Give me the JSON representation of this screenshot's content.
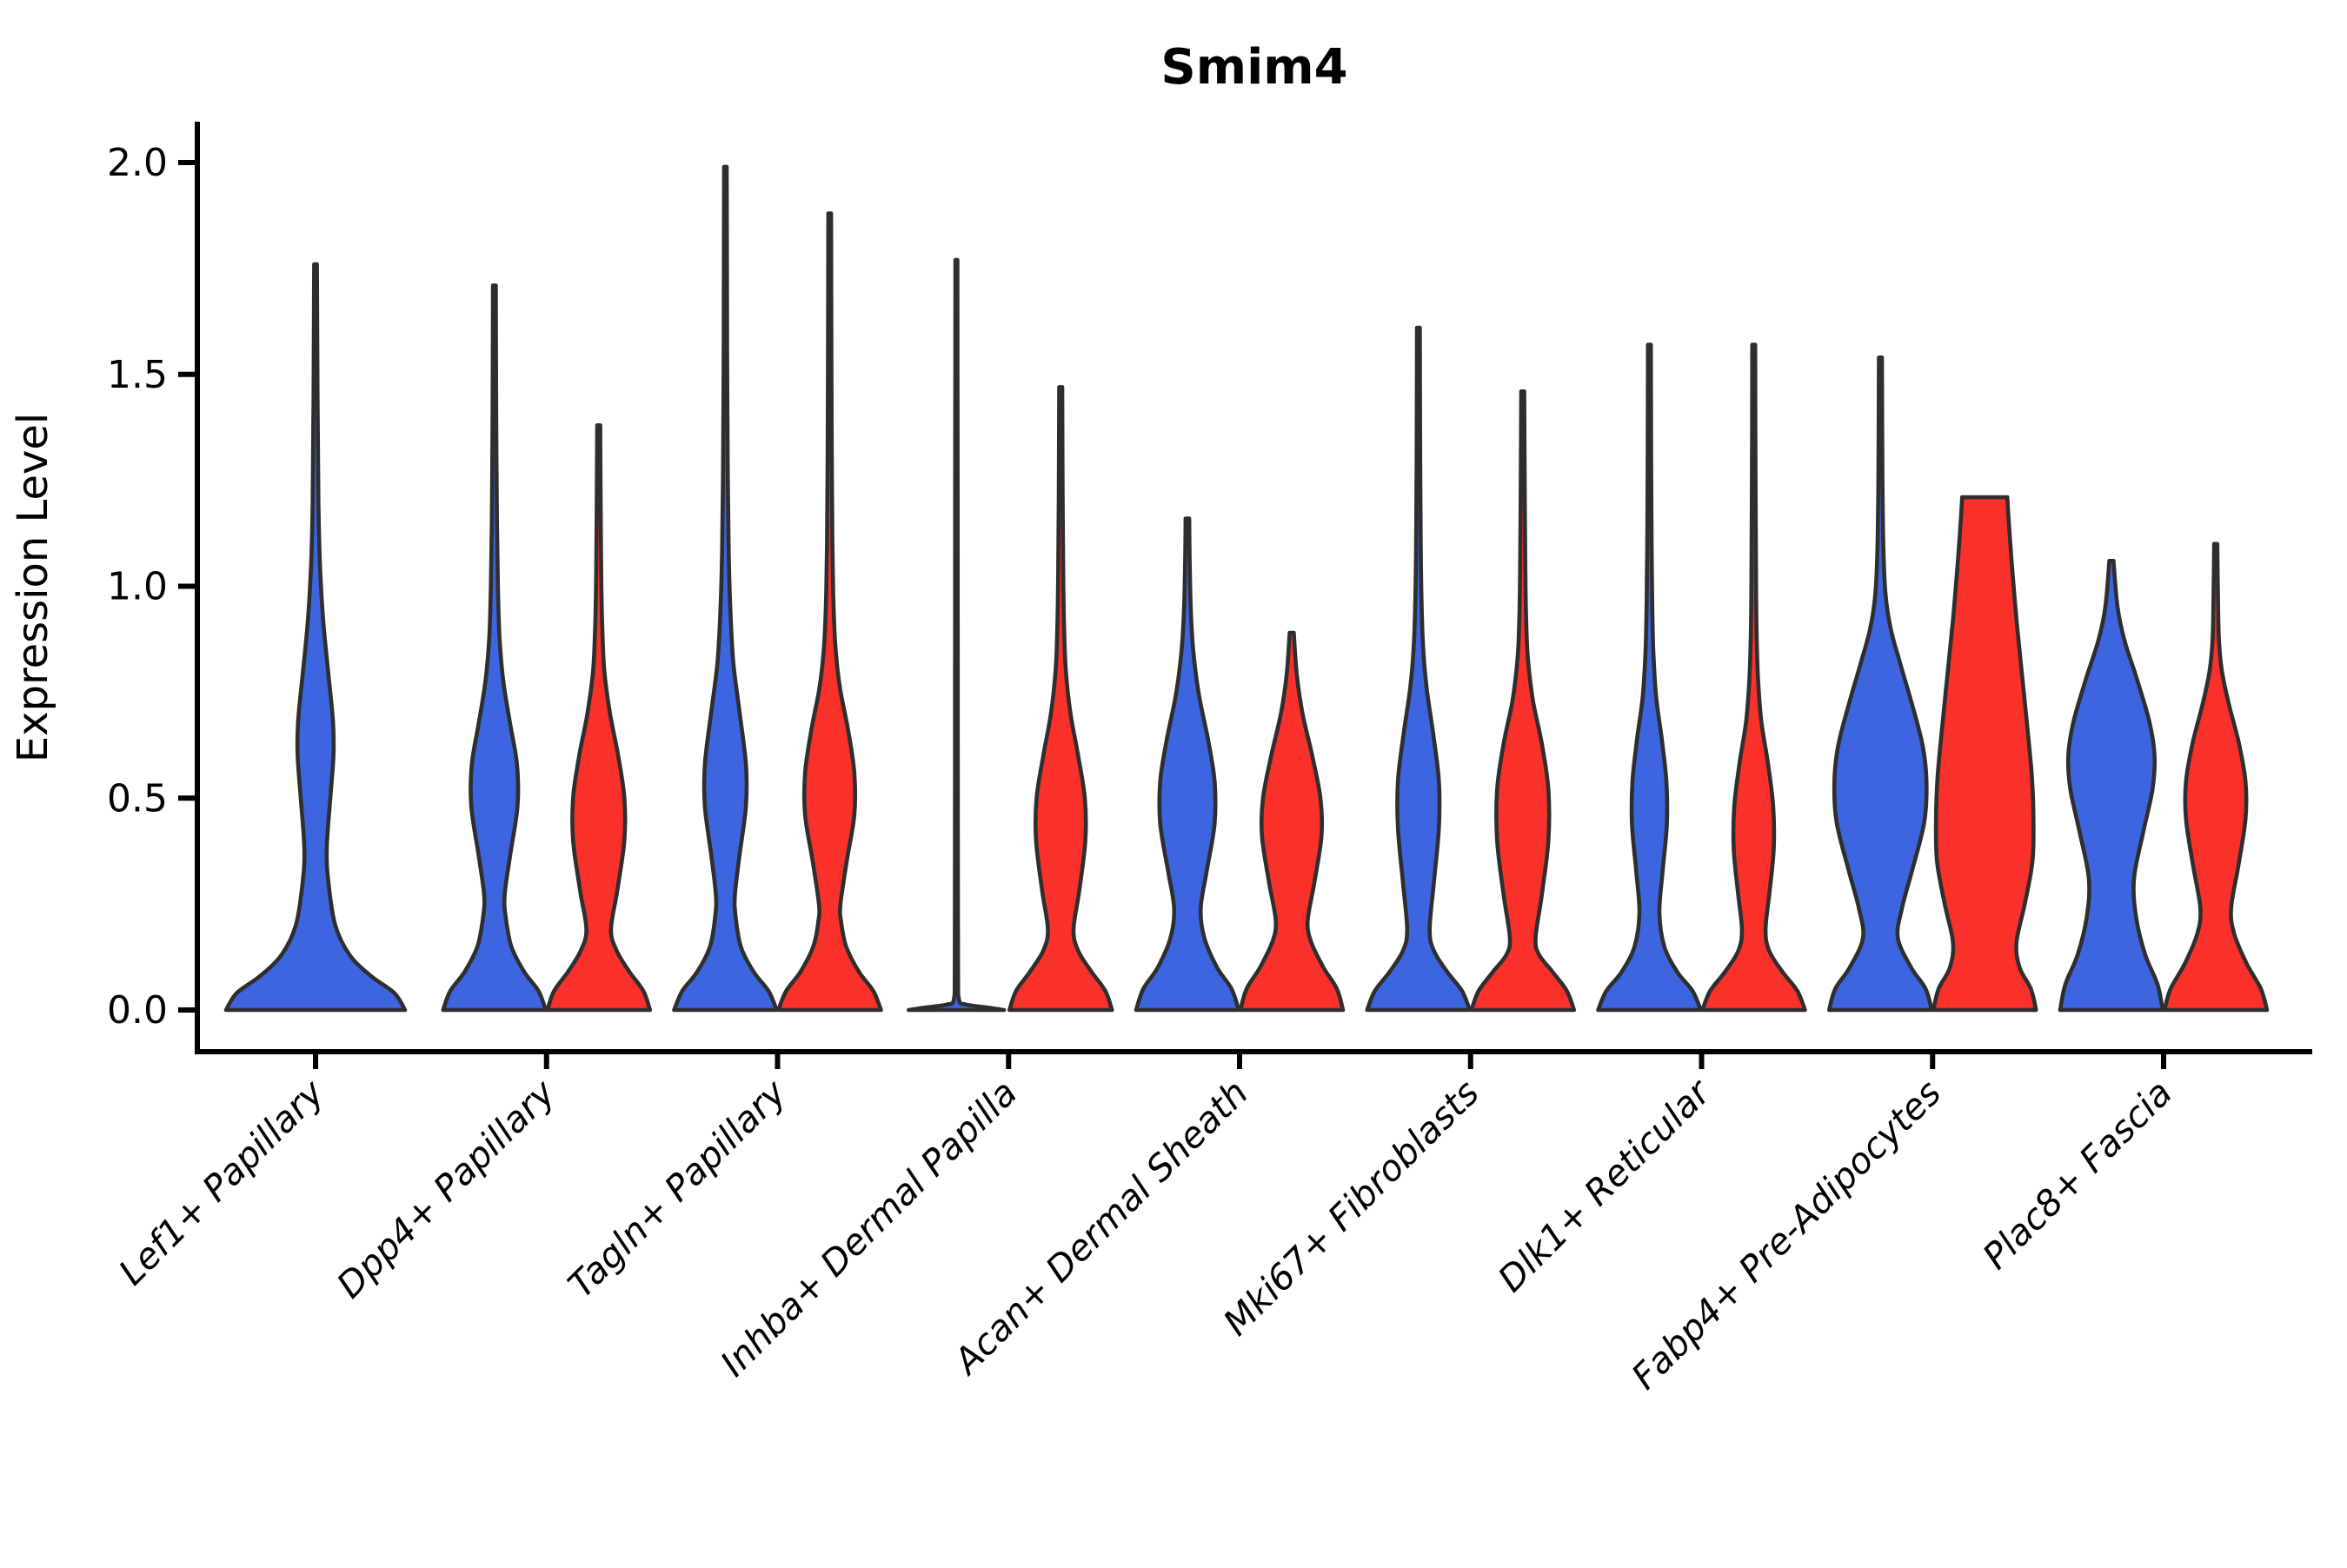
{
  "chart_data": {
    "type": "violin",
    "title": "Smim4",
    "ylabel": "Expression Level",
    "xlabel": "",
    "ylim": [
      0,
      2.05
    ],
    "grid": false,
    "legend": "none",
    "yticks": {
      "values": [
        0,
        0.5,
        1.0,
        1.5,
        2.0
      ],
      "labels": [
        "0.0",
        "0.5",
        "1.0",
        "1.5",
        "2.0"
      ]
    },
    "categories": [
      "Lef1+ Papillary",
      "Dpp4+ Papillary",
      "Tagln+ Papillary",
      "Inhba+ Dermal Papilla",
      "Acan+ Dermal Sheath",
      "Mki67+ Fibroblasts",
      "Dlk1+ Reticular",
      "Fabp4+ Pre-Adipocytes",
      "Plac8+ Fascia"
    ],
    "conditions": [
      {
        "id": "cond1",
        "color": "#3D65DF"
      },
      {
        "id": "cond2",
        "color": "#FA312A"
      }
    ],
    "outline_color": "#2E2E2E",
    "axis_color": "#000000",
    "violins": [
      {
        "category": "Lef1+ Papillary",
        "condition": "cond1",
        "layout": "single",
        "max": 1.76,
        "profile": [
          [
            0,
            1.0
          ],
          [
            0.04,
            0.88
          ],
          [
            0.08,
            0.62
          ],
          [
            0.13,
            0.38
          ],
          [
            0.2,
            0.22
          ],
          [
            0.3,
            0.145
          ],
          [
            0.38,
            0.125
          ],
          [
            0.5,
            0.165
          ],
          [
            0.6,
            0.2
          ],
          [
            0.68,
            0.195
          ],
          [
            0.8,
            0.14
          ],
          [
            0.92,
            0.085
          ],
          [
            1.05,
            0.05
          ],
          [
            1.2,
            0.032
          ],
          [
            1.45,
            0.022
          ],
          [
            1.76,
            0.016
          ]
        ]
      },
      {
        "category": "Dpp4+ Papillary",
        "condition": "cond1",
        "layout": "left",
        "max": 1.71,
        "profile": [
          [
            0,
            1.0
          ],
          [
            0.045,
            0.86
          ],
          [
            0.09,
            0.58
          ],
          [
            0.15,
            0.33
          ],
          [
            0.22,
            0.22
          ],
          [
            0.27,
            0.2
          ],
          [
            0.36,
            0.3
          ],
          [
            0.48,
            0.45
          ],
          [
            0.58,
            0.44
          ],
          [
            0.68,
            0.3
          ],
          [
            0.78,
            0.17
          ],
          [
            0.88,
            0.1
          ],
          [
            1.0,
            0.068
          ],
          [
            1.15,
            0.05
          ],
          [
            1.35,
            0.038
          ],
          [
            1.55,
            0.032
          ],
          [
            1.71,
            0.028
          ]
        ]
      },
      {
        "category": "Dpp4+ Papillary",
        "condition": "cond2",
        "layout": "right",
        "max": 1.38,
        "profile": [
          [
            0,
            1.0
          ],
          [
            0.045,
            0.87
          ],
          [
            0.09,
            0.6
          ],
          [
            0.14,
            0.35
          ],
          [
            0.19,
            0.24
          ],
          [
            0.28,
            0.36
          ],
          [
            0.4,
            0.5
          ],
          [
            0.5,
            0.5
          ],
          [
            0.6,
            0.38
          ],
          [
            0.7,
            0.22
          ],
          [
            0.8,
            0.11
          ],
          [
            0.9,
            0.07
          ],
          [
            1.02,
            0.05
          ],
          [
            1.2,
            0.038
          ],
          [
            1.38,
            0.03
          ]
        ]
      },
      {
        "category": "Tagln+ Papillary",
        "condition": "cond1",
        "layout": "left",
        "max": 1.99,
        "profile": [
          [
            0,
            1.0
          ],
          [
            0.045,
            0.84
          ],
          [
            0.09,
            0.55
          ],
          [
            0.15,
            0.3
          ],
          [
            0.22,
            0.2
          ],
          [
            0.27,
            0.185
          ],
          [
            0.36,
            0.27
          ],
          [
            0.48,
            0.4
          ],
          [
            0.58,
            0.4
          ],
          [
            0.7,
            0.28
          ],
          [
            0.82,
            0.155
          ],
          [
            0.95,
            0.095
          ],
          [
            1.08,
            0.065
          ],
          [
            1.25,
            0.048
          ],
          [
            1.5,
            0.036
          ],
          [
            1.75,
            0.03
          ],
          [
            1.99,
            0.026
          ]
        ]
      },
      {
        "category": "Tagln+ Papillary",
        "condition": "cond2",
        "layout": "right",
        "max": 1.88,
        "profile": [
          [
            0,
            1.0
          ],
          [
            0.045,
            0.85
          ],
          [
            0.09,
            0.57
          ],
          [
            0.15,
            0.32
          ],
          [
            0.21,
            0.22
          ],
          [
            0.25,
            0.21
          ],
          [
            0.35,
            0.33
          ],
          [
            0.46,
            0.48
          ],
          [
            0.56,
            0.48
          ],
          [
            0.66,
            0.36
          ],
          [
            0.76,
            0.2
          ],
          [
            0.86,
            0.11
          ],
          [
            0.97,
            0.072
          ],
          [
            1.1,
            0.052
          ],
          [
            1.3,
            0.04
          ],
          [
            1.6,
            0.032
          ],
          [
            1.88,
            0.027
          ]
        ]
      },
      {
        "category": "Inhba+ Dermal Papilla",
        "condition": "cond1",
        "layout": "left",
        "max": 1.77,
        "profile": [
          [
            0,
            0.93
          ],
          [
            0.006,
            0.6
          ],
          [
            0.013,
            0.18
          ],
          [
            0.025,
            0.05
          ],
          [
            0.1,
            0.032
          ],
          [
            0.4,
            0.028
          ],
          [
            0.8,
            0.026
          ],
          [
            1.2,
            0.024
          ],
          [
            1.5,
            0.022
          ],
          [
            1.77,
            0.02
          ]
        ]
      },
      {
        "category": "Inhba+ Dermal Papilla",
        "condition": "cond2",
        "layout": "right",
        "max": 1.47,
        "profile": [
          [
            0,
            1.0
          ],
          [
            0.045,
            0.87
          ],
          [
            0.09,
            0.6
          ],
          [
            0.14,
            0.34
          ],
          [
            0.19,
            0.25
          ],
          [
            0.28,
            0.36
          ],
          [
            0.4,
            0.48
          ],
          [
            0.5,
            0.47
          ],
          [
            0.6,
            0.34
          ],
          [
            0.7,
            0.19
          ],
          [
            0.8,
            0.1
          ],
          [
            0.9,
            0.067
          ],
          [
            1.02,
            0.05
          ],
          [
            1.2,
            0.038
          ],
          [
            1.47,
            0.03
          ]
        ]
      },
      {
        "category": "Acan+ Dermal Sheath",
        "condition": "cond1",
        "layout": "left",
        "max": 1.16,
        "profile": [
          [
            0,
            1.0
          ],
          [
            0.05,
            0.86
          ],
          [
            0.1,
            0.58
          ],
          [
            0.17,
            0.33
          ],
          [
            0.24,
            0.26
          ],
          [
            0.33,
            0.38
          ],
          [
            0.44,
            0.53
          ],
          [
            0.54,
            0.53
          ],
          [
            0.64,
            0.4
          ],
          [
            0.74,
            0.23
          ],
          [
            0.84,
            0.12
          ],
          [
            0.94,
            0.068
          ],
          [
            1.05,
            0.045
          ],
          [
            1.16,
            0.035
          ]
        ]
      },
      {
        "category": "Acan+ Dermal Sheath",
        "condition": "cond2",
        "layout": "right",
        "max": 0.89,
        "profile": [
          [
            0,
            1.0
          ],
          [
            0.05,
            0.88
          ],
          [
            0.1,
            0.62
          ],
          [
            0.16,
            0.38
          ],
          [
            0.21,
            0.31
          ],
          [
            0.3,
            0.44
          ],
          [
            0.41,
            0.58
          ],
          [
            0.5,
            0.56
          ],
          [
            0.6,
            0.4
          ],
          [
            0.7,
            0.21
          ],
          [
            0.79,
            0.1
          ],
          [
            0.89,
            0.04
          ]
        ]
      },
      {
        "category": "Mki67+ Fibroblasts",
        "condition": "cond1",
        "layout": "left",
        "max": 1.61,
        "profile": [
          [
            0,
            1.0
          ],
          [
            0.045,
            0.85
          ],
          [
            0.09,
            0.56
          ],
          [
            0.14,
            0.3
          ],
          [
            0.19,
            0.22
          ],
          [
            0.3,
            0.3
          ],
          [
            0.43,
            0.4
          ],
          [
            0.54,
            0.4
          ],
          [
            0.65,
            0.29
          ],
          [
            0.76,
            0.16
          ],
          [
            0.86,
            0.09
          ],
          [
            0.97,
            0.06
          ],
          [
            1.1,
            0.045
          ],
          [
            1.3,
            0.035
          ],
          [
            1.61,
            0.028
          ]
        ]
      },
      {
        "category": "Mki67+ Fibroblasts",
        "condition": "cond2",
        "layout": "right",
        "max": 1.46,
        "profile": [
          [
            0,
            1.0
          ],
          [
            0.045,
            0.86
          ],
          [
            0.09,
            0.58
          ],
          [
            0.13,
            0.32
          ],
          [
            0.17,
            0.25
          ],
          [
            0.27,
            0.37
          ],
          [
            0.4,
            0.5
          ],
          [
            0.52,
            0.5
          ],
          [
            0.63,
            0.37
          ],
          [
            0.73,
            0.2
          ],
          [
            0.83,
            0.1
          ],
          [
            0.93,
            0.065
          ],
          [
            1.05,
            0.05
          ],
          [
            1.25,
            0.038
          ],
          [
            1.46,
            0.03
          ]
        ]
      },
      {
        "category": "Dlk1+ Reticular",
        "condition": "cond1",
        "layout": "left",
        "max": 1.57,
        "profile": [
          [
            0,
            1.0
          ],
          [
            0.045,
            0.84
          ],
          [
            0.09,
            0.54
          ],
          [
            0.15,
            0.29
          ],
          [
            0.23,
            0.195
          ],
          [
            0.33,
            0.26
          ],
          [
            0.44,
            0.34
          ],
          [
            0.54,
            0.33
          ],
          [
            0.64,
            0.24
          ],
          [
            0.74,
            0.13
          ],
          [
            0.85,
            0.075
          ],
          [
            0.96,
            0.055
          ],
          [
            1.1,
            0.042
          ],
          [
            1.3,
            0.034
          ],
          [
            1.57,
            0.028
          ]
        ]
      },
      {
        "category": "Dlk1+ Reticular",
        "condition": "cond2",
        "layout": "right",
        "max": 1.57,
        "profile": [
          [
            0,
            1.0
          ],
          [
            0.045,
            0.85
          ],
          [
            0.09,
            0.56
          ],
          [
            0.14,
            0.3
          ],
          [
            0.19,
            0.23
          ],
          [
            0.28,
            0.31
          ],
          [
            0.38,
            0.39
          ],
          [
            0.48,
            0.38
          ],
          [
            0.58,
            0.28
          ],
          [
            0.68,
            0.15
          ],
          [
            0.78,
            0.085
          ],
          [
            0.88,
            0.058
          ],
          [
            1.0,
            0.045
          ],
          [
            1.25,
            0.035
          ],
          [
            1.57,
            0.028
          ]
        ]
      },
      {
        "category": "Fabp4+ Pre-Adipocytes",
        "condition": "cond1",
        "layout": "left",
        "max": 1.54,
        "profile": [
          [
            0,
            1.0
          ],
          [
            0.05,
            0.88
          ],
          [
            0.1,
            0.6
          ],
          [
            0.17,
            0.34
          ],
          [
            0.24,
            0.42
          ],
          [
            0.33,
            0.62
          ],
          [
            0.44,
            0.85
          ],
          [
            0.53,
            0.9
          ],
          [
            0.62,
            0.83
          ],
          [
            0.72,
            0.62
          ],
          [
            0.82,
            0.38
          ],
          [
            0.9,
            0.2
          ],
          [
            0.98,
            0.1
          ],
          [
            1.08,
            0.06
          ],
          [
            1.25,
            0.04
          ],
          [
            1.54,
            0.03
          ]
        ]
      },
      {
        "category": "Fabp4+ Pre-Adipocytes",
        "condition": "cond2",
        "layout": "right",
        "max": 1.21,
        "flat_top": true,
        "profile": [
          [
            0,
            1.0
          ],
          [
            0.05,
            0.9
          ],
          [
            0.1,
            0.68
          ],
          [
            0.16,
            0.62
          ],
          [
            0.25,
            0.78
          ],
          [
            0.35,
            0.93
          ],
          [
            0.45,
            0.95
          ],
          [
            0.55,
            0.92
          ],
          [
            0.68,
            0.82
          ],
          [
            0.8,
            0.72
          ],
          [
            0.92,
            0.62
          ],
          [
            1.05,
            0.53
          ],
          [
            1.15,
            0.47
          ],
          [
            1.21,
            0.44
          ]
        ]
      },
      {
        "category": "Plac8+ Fascia",
        "condition": "cond1",
        "layout": "left",
        "max": 1.06,
        "profile": [
          [
            0,
            1.0
          ],
          [
            0.06,
            0.9
          ],
          [
            0.13,
            0.66
          ],
          [
            0.22,
            0.48
          ],
          [
            0.31,
            0.44
          ],
          [
            0.42,
            0.62
          ],
          [
            0.52,
            0.8
          ],
          [
            0.6,
            0.84
          ],
          [
            0.68,
            0.74
          ],
          [
            0.78,
            0.5
          ],
          [
            0.87,
            0.26
          ],
          [
            0.95,
            0.12
          ],
          [
            1.06,
            0.04
          ]
        ]
      },
      {
        "category": "Plac8+ Fascia",
        "condition": "cond2",
        "layout": "right",
        "max": 1.1,
        "profile": [
          [
            0,
            1.0
          ],
          [
            0.05,
            0.88
          ],
          [
            0.11,
            0.6
          ],
          [
            0.18,
            0.36
          ],
          [
            0.24,
            0.3
          ],
          [
            0.34,
            0.44
          ],
          [
            0.45,
            0.58
          ],
          [
            0.54,
            0.58
          ],
          [
            0.63,
            0.45
          ],
          [
            0.72,
            0.26
          ],
          [
            0.8,
            0.12
          ],
          [
            0.88,
            0.06
          ],
          [
            1.0,
            0.04
          ],
          [
            1.1,
            0.03
          ]
        ]
      }
    ]
  }
}
